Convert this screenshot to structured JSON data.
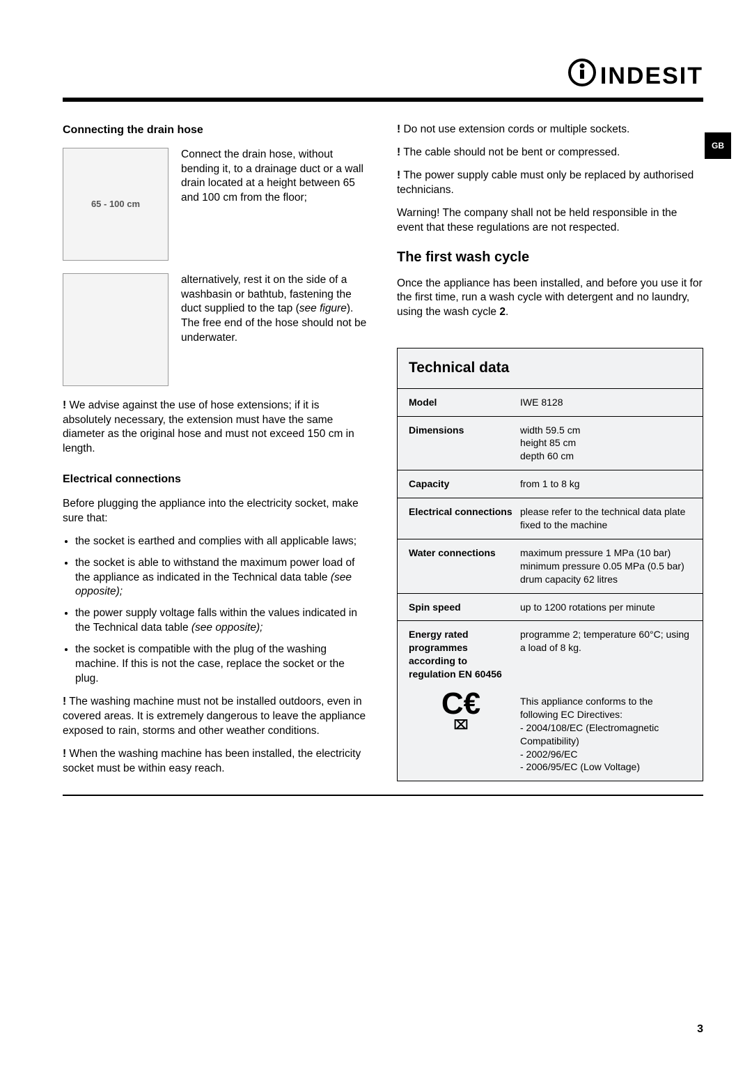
{
  "brand": "INDESIT",
  "lang_tab": "GB",
  "page_number": "3",
  "left": {
    "heading_drain": "Connecting the drain hose",
    "fig1_label": "65 - 100 cm",
    "para_drain": "Connect the drain hose, without bending it, to a drainage duct or a wall drain located at a height between 65 and 100 cm from the floor;",
    "para_alt": "alternatively, rest it on the side of a washbasin or bathtub, fastening the duct supplied to the tap (",
    "para_alt_it": "see figure",
    "para_alt2": "). The free end of the hose should not be underwater.",
    "warn_hose": " We advise against the use of hose extensions; if it is absolutely necessary, the extension must have the same diameter as the original hose and must not exceed 150 cm in length.",
    "heading_elec": "Electrical connections",
    "elec_intro": "Before plugging the appliance into the electricity socket, make sure that:",
    "b1": "the socket is earthed and complies with all applicable laws;",
    "b2a": "the socket is able to withstand the maximum power load of the appliance as indicated in the Technical data table ",
    "b2it": "(see opposite);",
    "b3a": "the power supply voltage falls within the values indicated in the Technical data table ",
    "b3it": "(see opposite);",
    "b4": "the socket is compatible with the plug of the washing machine. If this is not the case, replace the socket or the plug.",
    "warn_outdoor": " The washing machine must not be installed outdoors, even in covered areas. It is extremely dangerous to leave the appliance exposed to rain, storms and other weather conditions.",
    "warn_reach": " When the washing machine has been installed, the electricity socket must be within easy reach."
  },
  "right": {
    "w_ext": " Do not use extension cords or multiple sockets.",
    "w_cable": " The cable should not be bent or compressed.",
    "w_supply": " The power supply cable must only be replaced by authorised technicians.",
    "w_company": "Warning! The company shall not be held responsible in the event that these regulations are not respected.",
    "h_first": "The first wash cycle",
    "first_p1": "Once the appliance has been installed, and before you use it for the first time, run a wash cycle with detergent and no laundry, using the wash cycle ",
    "first_bold": "2",
    "first_p2": "."
  },
  "tech": {
    "title": "Technical data",
    "rows": [
      {
        "k": "Model",
        "v": "IWE 8128"
      },
      {
        "k": "Dimensions",
        "v": "width 59.5 cm\nheight 85 cm\ndepth 60 cm"
      },
      {
        "k": "Capacity",
        "v": "from 1 to 8 kg"
      },
      {
        "k": "Electrical connections",
        "v": "please refer to the technical data plate fixed to the machine"
      },
      {
        "k": "Water connections",
        "v": "maximum pressure 1 MPa (10 bar)\nminimum pressure 0.05 MPa (0.5 bar)\ndrum capacity 62 litres"
      },
      {
        "k": "Spin speed",
        "v": "up to 1200 rotations per minute"
      },
      {
        "k": "Energy rated programmes according to regulation EN 60456",
        "v": "programme 2; temperature 60°C; using a load of 8 kg."
      }
    ],
    "ce_text": "This appliance conforms to the following EC Directives:\n - 2004/108/EC (Electromagnetic Compatibility)\n - 2002/96/EC\n - 2006/95/EC (Low Voltage)"
  }
}
